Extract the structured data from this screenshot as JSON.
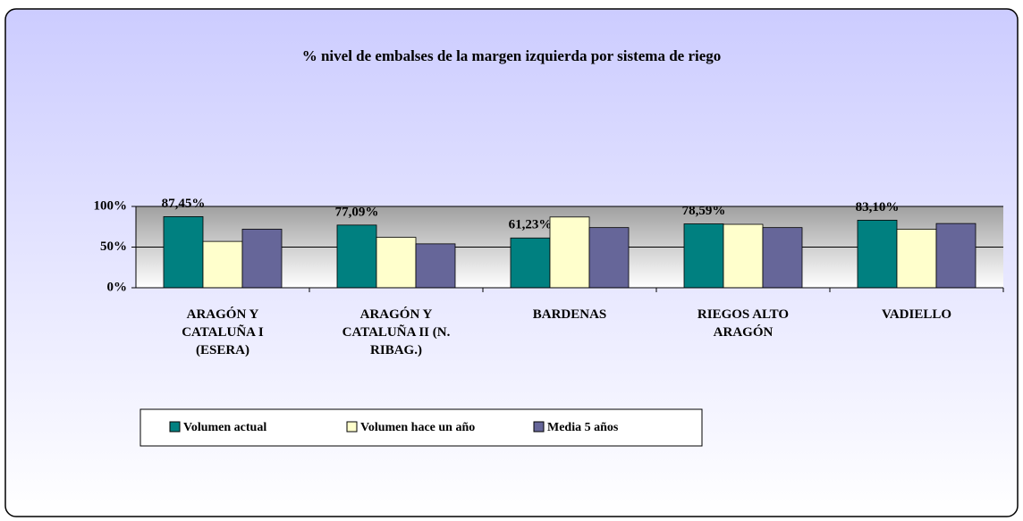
{
  "chart_data": {
    "type": "bar",
    "title": "% nivel de embalses de la margen izquierda por sistema de riego",
    "categories": [
      "ARAGÓN Y CATALUÑA I (ESERA)",
      "ARAGÓN Y CATALUÑA II (N. RIBAG.)",
      "BARDENAS",
      "RIEGOS ALTO ARAGÓN",
      "VADIELLO"
    ],
    "series": [
      {
        "name": "Volumen actual",
        "color": "#008080",
        "values": [
          87.45,
          77.09,
          61.23,
          78.59,
          83.1
        ],
        "value_labels": [
          "87,45%",
          "77,09%",
          "61,23%",
          "78,59%",
          "83,10%"
        ]
      },
      {
        "name": "Volumen hace un año",
        "color": "#ffffcc",
        "values": [
          57,
          62,
          87,
          78,
          72
        ]
      },
      {
        "name": "Media 5 años",
        "color": "#666699",
        "values": [
          72,
          54,
          74,
          74,
          79
        ]
      }
    ],
    "ylim": [
      0,
      100
    ],
    "yticks": [
      {
        "value": 0,
        "label": "0%"
      },
      {
        "value": 50,
        "label": "50%"
      },
      {
        "value": 100,
        "label": "100%"
      }
    ],
    "grid": true,
    "legend": "bottom"
  }
}
